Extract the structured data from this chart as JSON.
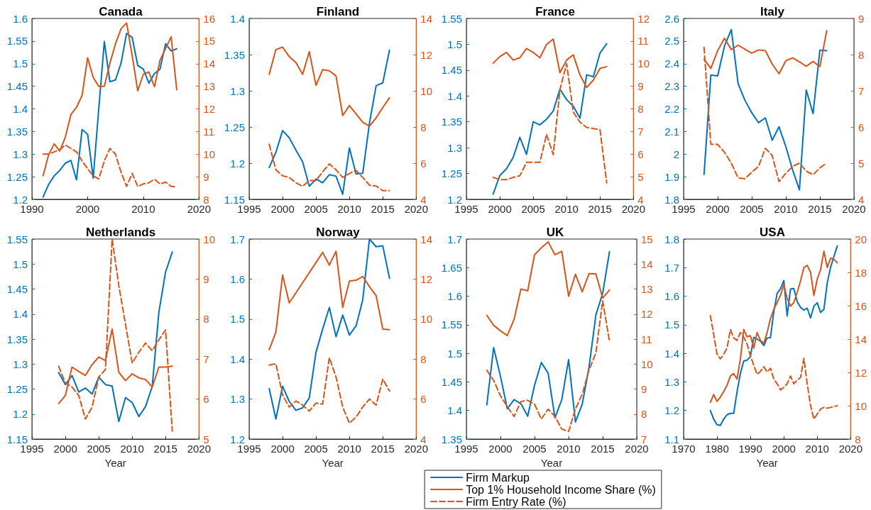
{
  "chart_data": [
    {
      "type": "line",
      "title": "Canada",
      "x": [
        1992,
        1993,
        1994,
        1995,
        1996,
        1997,
        1998,
        1999,
        2000,
        2001,
        2002,
        2003,
        2004,
        2005,
        2006,
        2007,
        2008,
        2009,
        2010,
        2011,
        2012,
        2013,
        2014,
        2015,
        2016
      ],
      "xlim": [
        1990,
        2020
      ],
      "xticks": [
        1990,
        2000,
        2010,
        2020
      ],
      "ylim": [
        1.2,
        1.6
      ],
      "yticks": [
        1.2,
        1.25,
        1.3,
        1.35,
        1.4,
        1.45,
        1.5,
        1.55,
        1.6
      ],
      "y2lim": [
        8,
        16
      ],
      "y2ticks": [
        8,
        9,
        10,
        11,
        12,
        13,
        14,
        15,
        16
      ],
      "series": [
        {
          "color": "#0072bd",
          "axis": "y",
          "line_style": "solid",
          "values": [
            1.205,
            1.233,
            1.252,
            1.264,
            1.28,
            1.286,
            1.243,
            1.354,
            1.344,
            1.247,
            1.4,
            1.549,
            1.46,
            1.464,
            1.501,
            1.567,
            1.558,
            1.496,
            1.488,
            1.457,
            1.478,
            1.488,
            1.544,
            1.528,
            1.533
          ]
        },
        {
          "color": "#d95319",
          "axis": "y2",
          "line_style": "solid",
          "values": [
            9.04,
            9.98,
            10.45,
            10.14,
            10.76,
            11.75,
            12.07,
            12.59,
            14.26,
            13.39,
            13.0,
            13.0,
            14.02,
            14.88,
            15.54,
            15.8,
            14.36,
            12.8,
            13.53,
            13.63,
            12.98,
            14.15,
            14.67,
            15.19,
            12.85
          ]
        },
        {
          "color": "#d95319",
          "axis": "y2",
          "line_style": "dashed",
          "values": [
            10,
            10,
            10.1,
            10.2,
            10.4,
            10.25,
            10.1,
            9.7,
            9.35,
            9.04,
            8.9,
            9.7,
            10.25,
            10.0,
            9.2,
            8.57,
            9.15,
            8.57,
            8.68,
            8.73,
            8.89,
            8.68,
            8.76,
            8.57,
            8.55
          ]
        }
      ]
    },
    {
      "type": "line",
      "title": "Finland",
      "x": [
        1998,
        1999,
        2000,
        2001,
        2002,
        2003,
        2004,
        2005,
        2006,
        2007,
        2008,
        2009,
        2010,
        2011,
        2012,
        2013,
        2014,
        2015,
        2016
      ],
      "xlim": [
        1995,
        2020
      ],
      "xticks": [
        1995,
        2000,
        2005,
        2010,
        2015,
        2020
      ],
      "ylim": [
        1.15,
        1.4
      ],
      "yticks": [
        1.15,
        1.2,
        1.25,
        1.3,
        1.35,
        1.4
      ],
      "y2lim": [
        4,
        14
      ],
      "y2ticks": [
        4,
        6,
        8,
        10,
        12,
        14
      ],
      "series": [
        {
          "color": "#0072bd",
          "axis": "y",
          "line_style": "solid",
          "values": [
            1.194,
            1.215,
            1.245,
            1.235,
            1.218,
            1.202,
            1.168,
            1.178,
            1.173,
            1.184,
            1.182,
            1.157,
            1.221,
            1.185,
            1.186,
            1.255,
            1.307,
            1.311,
            1.356
          ]
        },
        {
          "color": "#d95319",
          "axis": "y2",
          "line_style": "solid",
          "values": [
            10.91,
            12.28,
            12.41,
            11.89,
            11.56,
            10.91,
            12.17,
            10.3,
            11.17,
            11.11,
            10.82,
            8.63,
            9.18,
            8.72,
            8.26,
            8.04,
            8.5,
            9.08,
            9.61
          ]
        },
        {
          "color": "#d95319",
          "axis": "y2",
          "line_style": "dashed",
          "values": [
            7.04,
            5.63,
            5.3,
            5.21,
            4.91,
            4.72,
            5.04,
            5.04,
            5.52,
            5.96,
            5.63,
            5.21,
            5.43,
            5.6,
            5.21,
            4.78,
            4.74,
            4.48,
            4.48
          ]
        }
      ]
    },
    {
      "type": "line",
      "title": "France",
      "x": [
        1999,
        2000,
        2001,
        2002,
        2003,
        2004,
        2005,
        2006,
        2007,
        2008,
        2009,
        2010,
        2011,
        2012,
        2013,
        2014,
        2015,
        2016
      ],
      "xlim": [
        1995,
        2020
      ],
      "xticks": [
        1995,
        2000,
        2005,
        2010,
        2015,
        2020
      ],
      "ylim": [
        1.2,
        1.55
      ],
      "yticks": [
        1.2,
        1.25,
        1.3,
        1.35,
        1.4,
        1.45,
        1.5,
        1.55
      ],
      "y2lim": [
        4,
        12
      ],
      "y2ticks": [
        4,
        5,
        6,
        7,
        8,
        9,
        10,
        11,
        12
      ],
      "series": [
        {
          "color": "#0072bd",
          "axis": "y",
          "line_style": "solid",
          "values": [
            1.21,
            1.246,
            1.259,
            1.281,
            1.32,
            1.287,
            1.35,
            1.344,
            1.355,
            1.371,
            1.413,
            1.393,
            1.38,
            1.357,
            1.441,
            1.437,
            1.483,
            1.501
          ]
        },
        {
          "color": "#d95319",
          "axis": "y2",
          "line_style": "solid",
          "values": [
            10.02,
            10.31,
            10.5,
            10.16,
            10.26,
            10.67,
            10.5,
            10.26,
            10.85,
            11.09,
            9.6,
            10.16,
            10.39,
            9.5,
            8.95,
            9.27,
            9.79,
            9.87
          ]
        },
        {
          "color": "#d95319",
          "axis": "y2",
          "line_style": "dashed",
          "values": [
            4.97,
            4.87,
            4.87,
            4.97,
            5.04,
            5.64,
            5.64,
            5.64,
            6.87,
            5.98,
            8.85,
            10.0,
            7.86,
            7.41,
            7.18,
            7.13,
            7.08,
            4.73
          ]
        }
      ]
    },
    {
      "type": "line",
      "title": "Italy",
      "x": [
        1998,
        1999,
        2000,
        2001,
        2002,
        2003,
        2004,
        2005,
        2006,
        2007,
        2008,
        2009,
        2010,
        2011,
        2012,
        2013,
        2014,
        2015,
        2016
      ],
      "xlim": [
        1995,
        2020
      ],
      "xticks": [
        1995,
        2000,
        2005,
        2010,
        2015,
        2020
      ],
      "ylim": [
        1.8,
        2.6
      ],
      "yticks": [
        1.8,
        1.9,
        2,
        2.1,
        2.2,
        2.3,
        2.4,
        2.5,
        2.6
      ],
      "y2lim": [
        4,
        9
      ],
      "y2ticks": [
        4,
        5,
        6,
        7,
        8,
        9
      ],
      "series": [
        {
          "color": "#0072bd",
          "axis": "y",
          "line_style": "solid",
          "values": [
            1.91,
            2.35,
            2.346,
            2.478,
            2.551,
            2.311,
            2.238,
            2.183,
            2.139,
            2.16,
            2.061,
            2.121,
            2.033,
            1.93,
            1.842,
            2.283,
            2.179,
            2.46,
            2.457
          ]
        },
        {
          "color": "#d95319",
          "axis": "y2",
          "line_style": "solid",
          "values": [
            7.87,
            7.62,
            8.11,
            8.45,
            8.14,
            8.26,
            8.15,
            8.04,
            8.13,
            8.11,
            7.74,
            7.47,
            7.83,
            7.91,
            7.8,
            7.68,
            7.81,
            7.67,
            8.66
          ]
        },
        {
          "color": "#d95319",
          "axis": "y2",
          "line_style": "dashed",
          "values": [
            8.2,
            5.52,
            5.52,
            5.3,
            5.0,
            4.59,
            4.57,
            4.75,
            4.91,
            5.41,
            5.21,
            4.49,
            4.72,
            4.91,
            5.0,
            4.78,
            4.68,
            4.87,
            5.0
          ]
        }
      ]
    },
    {
      "type": "line",
      "title": "Netherlands",
      "xlabel": "Year",
      "x": [
        1999,
        2000,
        2001,
        2002,
        2003,
        2004,
        2005,
        2006,
        2007,
        2008,
        2009,
        2010,
        2011,
        2012,
        2013,
        2014,
        2015,
        2016
      ],
      "xlim": [
        1995,
        2020
      ],
      "xticks": [
        1995,
        2000,
        2005,
        2010,
        2015,
        2020
      ],
      "ylim": [
        1.15,
        1.55
      ],
      "yticks": [
        1.15,
        1.2,
        1.25,
        1.3,
        1.35,
        1.4,
        1.45,
        1.5,
        1.55
      ],
      "y2lim": [
        5,
        10
      ],
      "y2ticks": [
        5,
        6,
        7,
        8,
        9,
        10
      ],
      "series": [
        {
          "color": "#0072bd",
          "axis": "y",
          "line_style": "solid",
          "values": [
            1.283,
            1.259,
            1.277,
            1.244,
            1.252,
            1.24,
            1.274,
            1.259,
            1.256,
            1.185,
            1.233,
            1.223,
            1.195,
            1.215,
            1.255,
            1.404,
            1.484,
            1.524
          ]
        },
        {
          "color": "#d95319",
          "axis": "y2",
          "line_style": "solid",
          "values": [
            5.89,
            6.09,
            6.8,
            6.69,
            6.59,
            6.86,
            7.05,
            6.96,
            7.75,
            6.67,
            6.46,
            6.63,
            6.53,
            6.49,
            6.3,
            6.8,
            6.8,
            6.82
          ]
        },
        {
          "color": "#d95319",
          "axis": "y2",
          "line_style": "dashed",
          "values": [
            6.82,
            6.4,
            6.3,
            6.09,
            5.5,
            5.8,
            6.55,
            6.74,
            10.0,
            8.84,
            7.87,
            6.9,
            7.17,
            7.4,
            7.21,
            7.48,
            7.73,
            5.2
          ]
        }
      ]
    },
    {
      "type": "line",
      "title": "Norway",
      "xlabel": "Year",
      "x": [
        1998,
        1999,
        2000,
        2001,
        2002,
        2003,
        2004,
        2005,
        2006,
        2007,
        2008,
        2009,
        2010,
        2011,
        2012,
        2013,
        2014,
        2015,
        2016
      ],
      "xlim": [
        1995,
        2020
      ],
      "xticks": [
        1995,
        2000,
        2005,
        2010,
        2015,
        2020
      ],
      "ylim": [
        1.2,
        1.7
      ],
      "yticks": [
        1.2,
        1.3,
        1.4,
        1.5,
        1.6,
        1.7
      ],
      "y2lim": [
        4,
        14
      ],
      "y2ticks": [
        4,
        6,
        8,
        10,
        12,
        14
      ],
      "series": [
        {
          "color": "#0072bd",
          "axis": "y",
          "line_style": "solid",
          "values": [
            1.326,
            1.25,
            1.332,
            1.294,
            1.272,
            1.278,
            1.303,
            1.417,
            1.475,
            1.529,
            1.456,
            1.51,
            1.46,
            1.483,
            1.548,
            1.7,
            1.681,
            1.683,
            1.602
          ]
        },
        {
          "color": "#d95319",
          "axis": "y2",
          "line_style": "solid",
          "x": [
            1998,
            1999,
            2000,
            2001,
            2006,
            2007,
            2008,
            2009,
            2010,
            2011,
            2012,
            2013,
            2014,
            2015,
            2016
          ],
          "values": [
            8.47,
            9.35,
            12.2,
            10.81,
            13.33,
            12.7,
            13.39,
            10.58,
            11.9,
            11.94,
            12.13,
            11.62,
            11.17,
            9.5,
            9.47
          ]
        },
        {
          "color": "#d95319",
          "axis": "y2",
          "line_style": "dashed",
          "values": [
            7.7,
            7.77,
            6.2,
            5.6,
            5.9,
            5.7,
            5.4,
            5.8,
            5.75,
            8.07,
            7.11,
            5.6,
            4.8,
            5.1,
            5.6,
            6.0,
            5.7,
            7.0,
            6.4
          ]
        }
      ]
    },
    {
      "type": "line",
      "title": "UK",
      "xlabel": "Year",
      "legend": "bottom",
      "x": [
        1998,
        1999,
        2000,
        2001,
        2002,
        2003,
        2004,
        2005,
        2006,
        2007,
        2008,
        2009,
        2010,
        2011,
        2012,
        2013,
        2014,
        2015,
        2016
      ],
      "xlim": [
        1995,
        2020
      ],
      "xticks": [
        1995,
        2000,
        2005,
        2010,
        2015,
        2020
      ],
      "ylim": [
        1.35,
        1.7
      ],
      "yticks": [
        1.35,
        1.4,
        1.45,
        1.5,
        1.55,
        1.6,
        1.65,
        1.7
      ],
      "y2lim": [
        7,
        15
      ],
      "y2ticks": [
        7,
        8,
        9,
        10,
        11,
        12,
        13,
        14,
        15
      ],
      "series": [
        {
          "name": "Firm Markup",
          "color": "#0072bd",
          "axis": "y",
          "line_style": "solid",
          "values": [
            1.41,
            1.51,
            1.46,
            1.403,
            1.419,
            1.412,
            1.39,
            1.444,
            1.484,
            1.465,
            1.387,
            1.419,
            1.489,
            1.38,
            1.411,
            1.476,
            1.567,
            1.605,
            1.678
          ]
        },
        {
          "name": "Top 1% Household Income Share (%)",
          "color": "#d95319",
          "axis": "y2",
          "line_style": "solid",
          "values": [
            11.95,
            11.55,
            11.33,
            11.14,
            11.79,
            13.0,
            12.93,
            14.37,
            14.65,
            14.89,
            14.37,
            14.51,
            12.71,
            13.59,
            12.89,
            13.62,
            13.61,
            12.64,
            12.96
          ]
        },
        {
          "name": "Firm Entry Rate (%)",
          "color": "#d95319",
          "axis": "y2",
          "line_style": "dashed",
          "values": [
            9.75,
            9.35,
            8.73,
            8.3,
            7.9,
            8.5,
            8.55,
            8.4,
            7.8,
            8.2,
            7.9,
            7.4,
            7.3,
            8.2,
            8.79,
            9.77,
            10.44,
            12.53,
            10.9
          ]
        }
      ]
    },
    {
      "type": "line",
      "title": "USA",
      "xlabel": "Year",
      "x": [
        1978,
        1979,
        1980,
        1981,
        1982,
        1983,
        1984,
        1985,
        1986,
        1987,
        1988,
        1989,
        1990,
        1991,
        1992,
        1993,
        1994,
        1995,
        1996,
        1997,
        1998,
        1999,
        2000,
        2001,
        2002,
        2003,
        2004,
        2005,
        2006,
        2007,
        2008,
        2009,
        2010,
        2011,
        2012,
        2013,
        2014,
        2015,
        2016
      ],
      "xlim": [
        1970,
        2020
      ],
      "xticks": [
        1970,
        1980,
        1990,
        2000,
        2010,
        2020
      ],
      "ylim": [
        1.1,
        1.8
      ],
      "yticks": [
        1.1,
        1.2,
        1.3,
        1.4,
        1.5,
        1.6,
        1.7,
        1.8
      ],
      "y2lim": [
        8,
        20
      ],
      "y2ticks": [
        8,
        10,
        12,
        14,
        16,
        18,
        20
      ],
      "series": [
        {
          "color": "#0072bd",
          "axis": "y",
          "line_style": "solid",
          "values": [
            1.2,
            1.17,
            1.15,
            1.148,
            1.17,
            1.185,
            1.19,
            1.19,
            1.266,
            1.33,
            1.373,
            1.376,
            1.389,
            1.456,
            1.45,
            1.443,
            1.427,
            1.454,
            1.455,
            1.545,
            1.61,
            1.626,
            1.655,
            1.531,
            1.625,
            1.627,
            1.581,
            1.561,
            1.551,
            1.558,
            1.524,
            1.565,
            1.577,
            1.543,
            1.554,
            1.647,
            1.701,
            1.739,
            1.776
          ]
        },
        {
          "color": "#d95319",
          "axis": "y2",
          "line_style": "solid",
          "values": [
            10.2,
            10.67,
            10.26,
            10.52,
            10.85,
            11.23,
            11.78,
            11.93,
            11.6,
            12.81,
            14.57,
            14.14,
            14.2,
            13.46,
            14.39,
            13.92,
            13.74,
            14.39,
            15.22,
            15.78,
            16.19,
            16.62,
            17.27,
            16.43,
            15.97,
            16.19,
            16.8,
            17.49,
            18.29,
            18.42,
            18.01,
            16.62,
            17.6,
            18.16,
            19.27,
            18.29,
            18.85,
            18.79,
            18.57
          ]
        },
        {
          "color": "#d95319",
          "axis": "y2",
          "line_style": "dashed",
          "values": [
            15.41,
            14.29,
            13.09,
            12.81,
            13.09,
            13.46,
            14.57,
            14.07,
            13.92,
            14.39,
            14.11,
            13.7,
            12.99,
            12.43,
            11.88,
            12.06,
            12.34,
            12.03,
            12.25,
            11.6,
            11.32,
            10.95,
            11.1,
            11.32,
            11.78,
            11.32,
            11.54,
            11.69,
            12.84,
            11.32,
            10.0,
            9.2,
            9.5,
            9.8,
            9.9,
            9.85,
            9.9,
            9.95,
            10.0
          ]
        }
      ]
    }
  ]
}
